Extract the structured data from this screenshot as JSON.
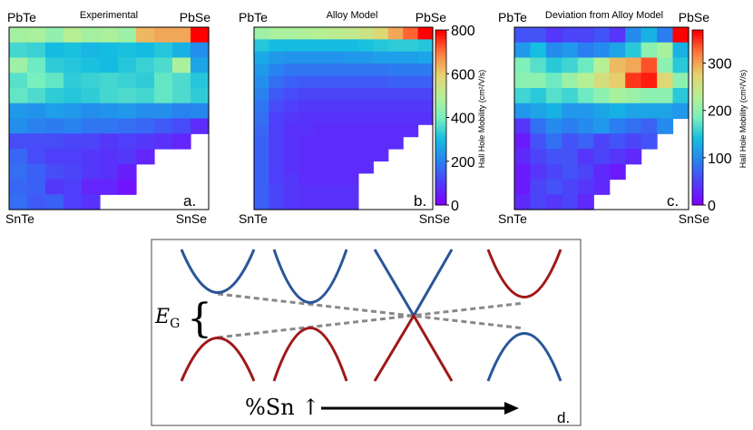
{
  "chart_data": [
    {
      "type": "heatmap",
      "title": "Experimental",
      "panel_label": "a.",
      "corner_labels": {
        "top_left": "PbTe",
        "top_right": "PbSe",
        "bottom_left": "SnTe",
        "bottom_right": "SnSe"
      },
      "colorscale": "rainbow",
      "vmin": 0,
      "vmax": 800,
      "grid": [
        [
          470,
          480,
          440,
          500,
          470,
          480,
          460,
          630,
          650,
          650,
          800
        ],
        [
          350,
          340,
          300,
          310,
          290,
          300,
          310,
          300,
          320,
          280,
          220
        ],
        [
          460,
          390,
          330,
          320,
          310,
          300,
          320,
          340,
          360,
          480,
          260
        ],
        [
          370,
          400,
          380,
          330,
          340,
          350,
          340,
          330,
          380,
          360,
          320
        ],
        [
          380,
          360,
          330,
          320,
          330,
          350,
          360,
          350,
          380,
          360,
          330
        ],
        [
          240,
          230,
          250,
          240,
          220,
          230,
          240,
          220,
          220,
          200,
          210
        ],
        [
          220,
          200,
          190,
          200,
          180,
          180,
          170,
          160,
          140,
          120,
          70
        ],
        [
          120,
          120,
          120,
          110,
          110,
          90,
          100,
          90,
          80,
          60,
          null
        ],
        [
          160,
          120,
          100,
          100,
          90,
          80,
          90,
          60,
          null,
          null,
          null
        ],
        [
          170,
          150,
          120,
          110,
          90,
          80,
          50,
          null,
          null,
          null,
          null
        ],
        [
          160,
          150,
          90,
          100,
          60,
          60,
          30,
          null,
          null,
          null,
          null
        ],
        [
          170,
          140,
          150,
          100,
          80,
          null,
          null,
          null,
          null,
          null,
          null
        ]
      ]
    },
    {
      "type": "heatmap",
      "title": "Alloy Model",
      "panel_label": "b.",
      "corner_labels": {
        "top_left": "PbTe",
        "top_right": "PbSe",
        "bottom_left": "SnTe",
        "bottom_right": "SnSe"
      },
      "colorscale": "rainbow",
      "vmin": 0,
      "vmax": 800,
      "colorbar": {
        "label": "Hall Hole Mobility (cm²/V/s)",
        "ticks": [
          0,
          200,
          400,
          600,
          800
        ]
      },
      "grid": [
        [
          460,
          480,
          480,
          490,
          500,
          510,
          520,
          540,
          580,
          650,
          720,
          800
        ],
        [
          320,
          300,
          300,
          300,
          300,
          300,
          300,
          310,
          320,
          330,
          330,
          320
        ],
        [
          270,
          240,
          230,
          230,
          230,
          230,
          240,
          240,
          250,
          250,
          250,
          260
        ],
        [
          240,
          200,
          180,
          180,
          180,
          180,
          180,
          180,
          180,
          190,
          190,
          190
        ],
        [
          220,
          170,
          150,
          140,
          140,
          140,
          140,
          140,
          140,
          150,
          150,
          150
        ],
        [
          200,
          140,
          120,
          110,
          110,
          110,
          110,
          110,
          110,
          110,
          110,
          110
        ],
        [
          180,
          120,
          100,
          90,
          90,
          90,
          90,
          90,
          90,
          90,
          90,
          90
        ],
        [
          170,
          100,
          90,
          80,
          80,
          80,
          80,
          80,
          80,
          80,
          80,
          80
        ],
        [
          160,
          100,
          80,
          80,
          70,
          70,
          70,
          70,
          70,
          70,
          70,
          null
        ],
        [
          150,
          100,
          80,
          70,
          70,
          70,
          70,
          70,
          70,
          70,
          null,
          null
        ],
        [
          150,
          100,
          80,
          70,
          70,
          70,
          70,
          70,
          70,
          null,
          null,
          null
        ],
        [
          150,
          100,
          80,
          70,
          70,
          70,
          70,
          70,
          null,
          null,
          null,
          null
        ],
        [
          150,
          100,
          90,
          70,
          70,
          70,
          70,
          null,
          null,
          null,
          null,
          null
        ],
        [
          150,
          110,
          90,
          80,
          80,
          80,
          80,
          null,
          null,
          null,
          null,
          null
        ],
        [
          150,
          110,
          90,
          80,
          80,
          80,
          80,
          null,
          null,
          null,
          null,
          null
        ]
      ]
    },
    {
      "type": "heatmap",
      "title": "Deviation from Alloy Model",
      "panel_label": "c.",
      "corner_labels": {
        "top_left": "PbTe",
        "top_right": "PbSe",
        "bottom_left": "SnTe",
        "bottom_right": "SnSe"
      },
      "colorscale": "rainbow",
      "vmin": 0,
      "vmax": 370,
      "colorbar": {
        "label": "Hall Hole Mobility (cm²/V/s)",
        "ticks": [
          0,
          100,
          200,
          300
        ]
      },
      "grid": [
        [
          60,
          60,
          40,
          50,
          50,
          60,
          40,
          100,
          130,
          90,
          370
        ],
        [
          110,
          140,
          100,
          110,
          90,
          100,
          120,
          150,
          200,
          220,
          130
        ],
        [
          190,
          170,
          150,
          160,
          180,
          230,
          290,
          300,
          340,
          200,
          150
        ],
        [
          200,
          200,
          180,
          210,
          230,
          260,
          280,
          350,
          360,
          270,
          200
        ],
        [
          160,
          150,
          170,
          160,
          180,
          200,
          220,
          210,
          200,
          200,
          150
        ],
        [
          110,
          120,
          130,
          110,
          110,
          120,
          130,
          120,
          120,
          120,
          110
        ],
        [
          40,
          80,
          100,
          90,
          100,
          110,
          90,
          80,
          70,
          100,
          null
        ],
        [
          20,
          60,
          80,
          60,
          70,
          50,
          60,
          50,
          60,
          null,
          null
        ],
        [
          30,
          50,
          60,
          60,
          40,
          50,
          40,
          30,
          null,
          null,
          null
        ],
        [
          20,
          40,
          50,
          60,
          50,
          30,
          20,
          null,
          null,
          null,
          null
        ],
        [
          20,
          50,
          60,
          50,
          40,
          30,
          null,
          null,
          null,
          null,
          null
        ],
        [
          30,
          50,
          40,
          50,
          30,
          null,
          null,
          null,
          null,
          null,
          null
        ]
      ]
    }
  ],
  "schematic": {
    "panel_label": "d.",
    "gap_label": "E",
    "gap_label_sub": "G",
    "axis_label": "%Sn ↑",
    "conduction_color": "#2a5699",
    "valence_color": "#a01818",
    "guide_color": "#888888"
  }
}
